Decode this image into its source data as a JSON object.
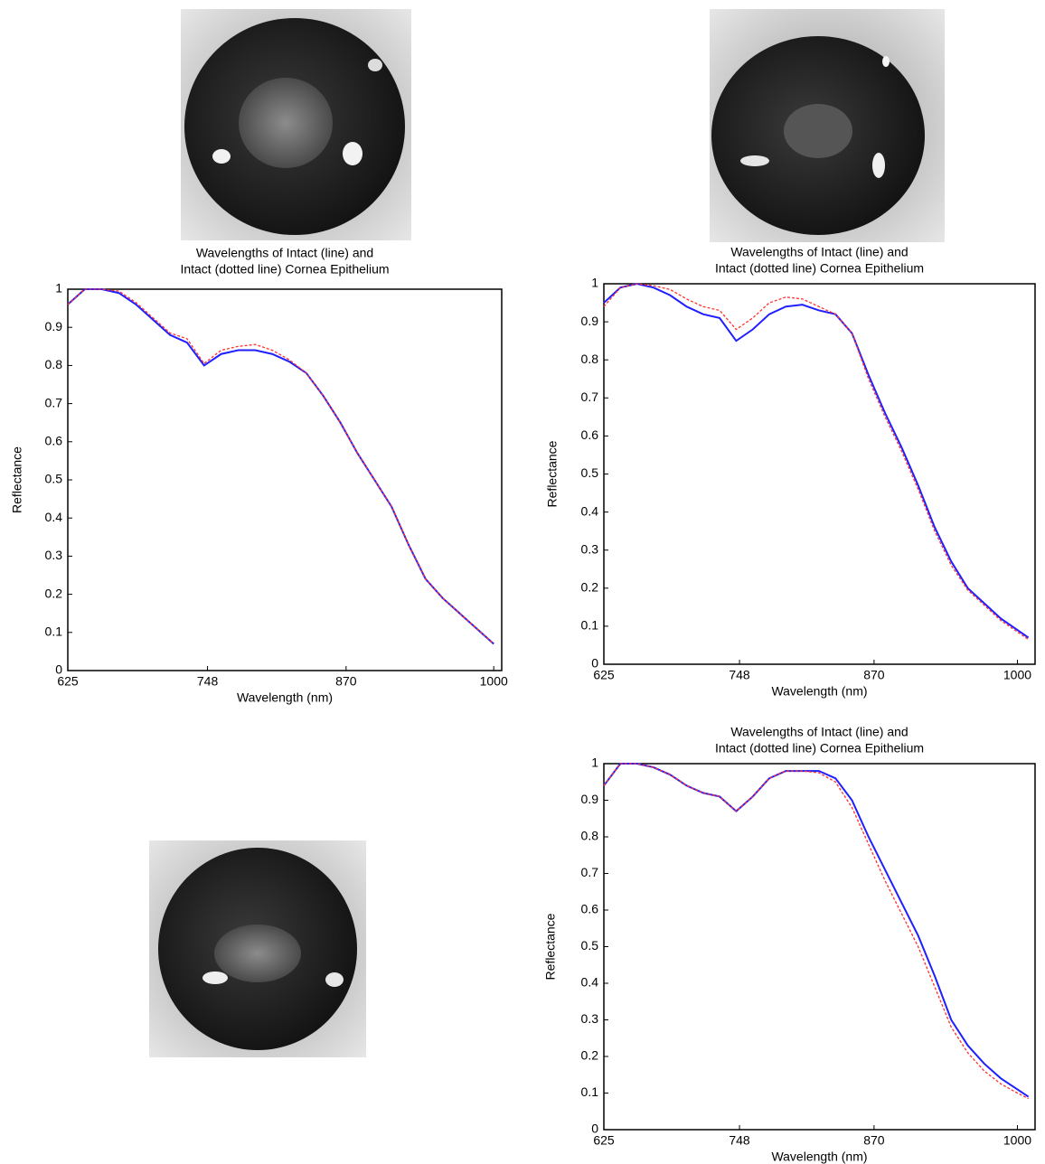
{
  "chart_data": [
    {
      "type": "line",
      "title": [
        "Wavelengths of Intact (line) and",
        "Intact (dotted line) Cornea Epithelium"
      ],
      "x_label": "Wavelength (nm)",
      "y_label": "Reflectance",
      "x": [
        625,
        640,
        655,
        670,
        685,
        700,
        715,
        730,
        745,
        760,
        775,
        790,
        805,
        820,
        835,
        850,
        865,
        880,
        895,
        910,
        925,
        940,
        955,
        970,
        985,
        1000
      ],
      "series": [
        {
          "color": "#1f1fff",
          "linestyle": "solid",
          "values": [
            0.96,
            1.0,
            1.0,
            0.99,
            0.96,
            0.92,
            0.88,
            0.86,
            0.8,
            0.83,
            0.84,
            0.84,
            0.83,
            0.81,
            0.78,
            0.72,
            0.65,
            0.57,
            0.5,
            0.43,
            0.33,
            0.24,
            0.19,
            0.15,
            0.11,
            0.07
          ]
        },
        {
          "color": "#ff3030",
          "linestyle": "dotted",
          "values": [
            0.96,
            1.0,
            1.0,
            0.995,
            0.965,
            0.925,
            0.885,
            0.87,
            0.805,
            0.84,
            0.85,
            0.855,
            0.84,
            0.815,
            0.78,
            0.72,
            0.65,
            0.57,
            0.5,
            0.43,
            0.33,
            0.24,
            0.19,
            0.15,
            0.11,
            0.07
          ]
        }
      ],
      "xlim": [
        625,
        1007
      ],
      "ylim": [
        0,
        1
      ],
      "xticks": [
        625,
        748,
        870,
        1000
      ],
      "yticks": [
        0,
        0.1,
        0.2,
        0.3,
        0.4,
        0.5,
        0.6,
        0.7,
        0.8,
        0.9,
        1
      ],
      "grid": false
    },
    {
      "type": "line",
      "title": [
        "Wavelengths of Intact (line) and",
        "Intact (dotted line) Cornea Epithelium"
      ],
      "x_label": "Wavelength (nm)",
      "y_label": "Reflectance",
      "x": [
        625,
        640,
        655,
        670,
        685,
        700,
        715,
        730,
        745,
        760,
        775,
        790,
        805,
        820,
        835,
        850,
        865,
        880,
        895,
        910,
        925,
        940,
        955,
        970,
        985,
        1000,
        1010
      ],
      "series": [
        {
          "color": "#1f1fff",
          "linestyle": "solid",
          "values": [
            0.95,
            0.99,
            1.0,
            0.99,
            0.97,
            0.94,
            0.92,
            0.91,
            0.85,
            0.88,
            0.92,
            0.94,
            0.945,
            0.93,
            0.92,
            0.87,
            0.76,
            0.66,
            0.57,
            0.47,
            0.36,
            0.27,
            0.2,
            0.16,
            0.12,
            0.09,
            0.07
          ]
        },
        {
          "color": "#ff3030",
          "linestyle": "dotted",
          "values": [
            0.94,
            0.99,
            1.0,
            0.995,
            0.985,
            0.96,
            0.94,
            0.93,
            0.88,
            0.91,
            0.95,
            0.965,
            0.96,
            0.94,
            0.92,
            0.87,
            0.75,
            0.65,
            0.56,
            0.46,
            0.35,
            0.26,
            0.195,
            0.155,
            0.115,
            0.085,
            0.065
          ]
        }
      ],
      "xlim": [
        625,
        1016
      ],
      "ylim": [
        0,
        1
      ],
      "xticks": [
        625,
        748,
        870,
        1000
      ],
      "yticks": [
        0,
        0.1,
        0.2,
        0.3,
        0.4,
        0.5,
        0.6,
        0.7,
        0.8,
        0.9,
        1
      ],
      "grid": false
    },
    {
      "type": "line",
      "title": [
        "Wavelengths of Intact (line) and",
        "Intact (dotted line) Cornea Epithelium"
      ],
      "x_label": "Wavelength (nm)",
      "y_label": "Reflectance",
      "x": [
        625,
        640,
        655,
        670,
        685,
        700,
        715,
        730,
        745,
        760,
        775,
        790,
        805,
        820,
        835,
        850,
        865,
        880,
        895,
        910,
        925,
        940,
        955,
        970,
        985,
        1000,
        1010
      ],
      "series": [
        {
          "color": "#1f1fff",
          "linestyle": "solid",
          "values": [
            0.94,
            1.0,
            1.0,
            0.99,
            0.97,
            0.94,
            0.92,
            0.91,
            0.87,
            0.91,
            0.96,
            0.98,
            0.98,
            0.98,
            0.96,
            0.9,
            0.8,
            0.71,
            0.62,
            0.53,
            0.42,
            0.3,
            0.23,
            0.18,
            0.14,
            0.11,
            0.09
          ]
        },
        {
          "color": "#ff3030",
          "linestyle": "dotted",
          "values": [
            0.94,
            1.0,
            1.0,
            0.99,
            0.97,
            0.94,
            0.92,
            0.91,
            0.87,
            0.91,
            0.96,
            0.98,
            0.98,
            0.975,
            0.95,
            0.88,
            0.78,
            0.68,
            0.59,
            0.5,
            0.39,
            0.28,
            0.21,
            0.16,
            0.125,
            0.1,
            0.085
          ]
        }
      ],
      "xlim": [
        625,
        1016
      ],
      "ylim": [
        0,
        1
      ],
      "xticks": [
        625,
        748,
        870,
        1000
      ],
      "yticks": [
        0,
        0.1,
        0.2,
        0.3,
        0.4,
        0.5,
        0.6,
        0.7,
        0.8,
        0.9,
        1
      ],
      "grid": false
    }
  ]
}
